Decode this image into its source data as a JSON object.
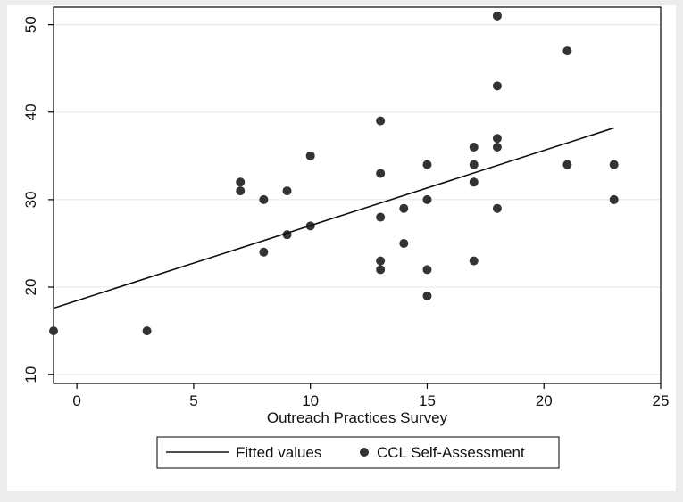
{
  "chart_data": {
    "type": "scatter",
    "title": "",
    "xlabel": "Outreach Practices Survey",
    "ylabel": "",
    "xlim": [
      -1,
      25
    ],
    "ylim": [
      9,
      52
    ],
    "x_ticks": [
      0,
      5,
      10,
      15,
      20,
      25
    ],
    "y_ticks": [
      10,
      20,
      30,
      40,
      50
    ],
    "grid": true,
    "legend_position": "bottom",
    "series": [
      {
        "name": "CCL Self-Assessment",
        "kind": "scatter",
        "color": "#333333",
        "points": [
          [
            -1,
            15
          ],
          [
            3,
            15
          ],
          [
            7,
            31
          ],
          [
            7,
            32
          ],
          [
            8,
            24
          ],
          [
            8,
            30
          ],
          [
            9,
            26
          ],
          [
            9,
            31
          ],
          [
            10,
            27
          ],
          [
            10,
            35
          ],
          [
            13,
            22
          ],
          [
            13,
            23
          ],
          [
            13,
            28
          ],
          [
            13,
            33
          ],
          [
            13,
            39
          ],
          [
            14,
            25
          ],
          [
            14,
            29
          ],
          [
            15,
            19
          ],
          [
            15,
            22
          ],
          [
            15,
            30
          ],
          [
            15,
            34
          ],
          [
            17,
            23
          ],
          [
            17,
            32
          ],
          [
            17,
            34
          ],
          [
            17,
            36
          ],
          [
            18,
            29
          ],
          [
            18,
            36
          ],
          [
            18,
            37
          ],
          [
            18,
            43
          ],
          [
            18,
            51
          ],
          [
            21,
            34
          ],
          [
            21,
            47
          ],
          [
            23,
            30
          ],
          [
            23,
            34
          ]
        ]
      },
      {
        "name": "Fitted values",
        "kind": "line",
        "color": "#111111",
        "points": [
          [
            -1,
            17.6
          ],
          [
            23,
            38.2
          ]
        ]
      }
    ]
  }
}
